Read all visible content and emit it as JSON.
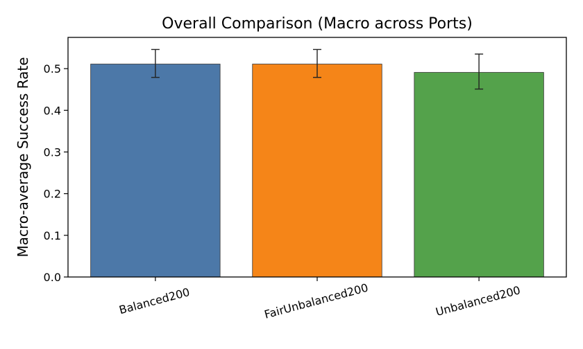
{
  "chart_data": {
    "type": "bar",
    "title": "Overall Comparison (Macro across Ports)",
    "xlabel": "",
    "ylabel": "Macro-average Success Rate",
    "categories": [
      "Balanced200",
      "FairUnbalanced200",
      "Unbalanced200"
    ],
    "values": [
      0.511,
      0.511,
      0.491
    ],
    "error_low": [
      0.479,
      0.479,
      0.451
    ],
    "error_high": [
      0.546,
      0.546,
      0.535
    ],
    "colors": [
      "#4c78a8",
      "#f58518",
      "#54a24b"
    ],
    "ylim": [
      0,
      0.575
    ],
    "yticks": [
      "0.0",
      "0.1",
      "0.2",
      "0.3",
      "0.4",
      "0.5"
    ],
    "ytick_values": [
      0.0,
      0.1,
      0.2,
      0.3,
      0.4,
      0.5
    ],
    "grid": false,
    "xtick_rotation_deg": 15
  }
}
